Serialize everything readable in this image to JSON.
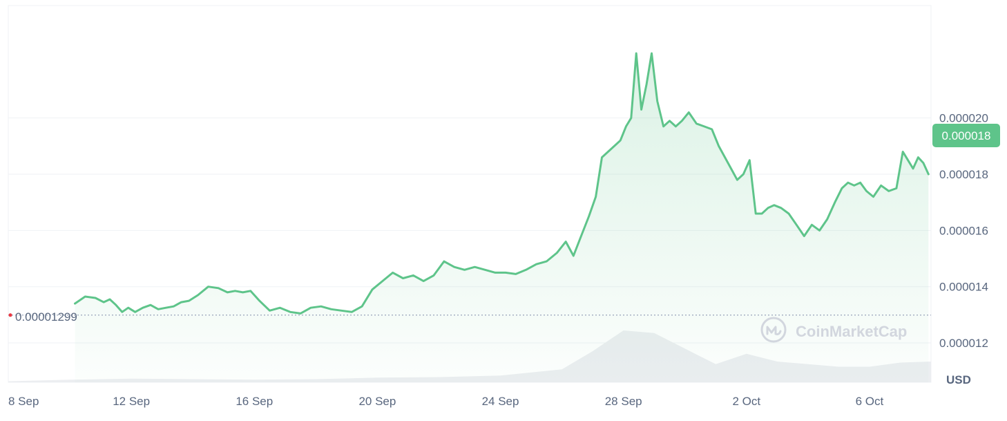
{
  "chart_data": {
    "type": "line",
    "currency_label": "USD",
    "watermark": "CoinMarketCap",
    "reference_line": {
      "value": 1.299e-05,
      "label": "0.00001299"
    },
    "current_price": {
      "value": 1.8e-05,
      "label": "0.000018"
    },
    "x_axis": {
      "start": "2023-09-08",
      "end": "2023-10-08",
      "ticks": [
        "8 Sep",
        "12 Sep",
        "16 Sep",
        "20 Sep",
        "24 Sep",
        "28 Sep",
        "2 Oct",
        "6 Oct"
      ]
    },
    "y_axis": {
      "range": [
        1.06e-05,
        2.4e-05
      ],
      "ticks": [
        "0.000012",
        "0.000014",
        "0.000016",
        "0.000018",
        "0.000020"
      ]
    },
    "grid": true,
    "colors": {
      "line": "#5ec48a",
      "fill": "#5ec48a",
      "current_badge": "#5ec48a",
      "reference_dot": "#ea3943",
      "grid": "#eff2f5",
      "axis_text": "#58667e",
      "volume": "#eceef1",
      "watermark": "#d2d6de"
    },
    "series": [
      {
        "values": [
          [
            "2023-09-10",
            1.34e-05
          ],
          [
            "2023-09-10",
            1.365e-05
          ],
          [
            "2023-09-10",
            1.36e-05
          ],
          [
            "2023-09-11",
            1.345e-05
          ],
          [
            "2023-09-11",
            1.355e-05
          ],
          [
            "2023-09-11",
            1.335e-05
          ],
          [
            "2023-09-11",
            1.31e-05
          ],
          [
            "2023-09-11",
            1.325e-05
          ],
          [
            "2023-09-12",
            1.31e-05
          ],
          [
            "2023-09-12",
            1.325e-05
          ],
          [
            "2023-09-12",
            1.335e-05
          ],
          [
            "2023-09-12",
            1.32e-05
          ],
          [
            "2023-09-13",
            1.325e-05
          ],
          [
            "2023-09-13",
            1.33e-05
          ],
          [
            "2023-09-13",
            1.345e-05
          ],
          [
            "2023-09-13",
            1.35e-05
          ],
          [
            "2023-09-14",
            1.37e-05
          ],
          [
            "2023-09-14",
            1.4e-05
          ],
          [
            "2023-09-14",
            1.395e-05
          ],
          [
            "2023-09-15",
            1.38e-05
          ],
          [
            "2023-09-15",
            1.385e-05
          ],
          [
            "2023-09-15",
            1.38e-05
          ],
          [
            "2023-09-15",
            1.385e-05
          ],
          [
            "2023-09-16",
            1.35e-05
          ],
          [
            "2023-09-16",
            1.315e-05
          ],
          [
            "2023-09-16",
            1.325e-05
          ],
          [
            "2023-09-17",
            1.31e-05
          ],
          [
            "2023-09-17",
            1.305e-05
          ],
          [
            "2023-09-17",
            1.325e-05
          ],
          [
            "2023-09-18",
            1.33e-05
          ],
          [
            "2023-09-18",
            1.32e-05
          ],
          [
            "2023-09-18",
            1.315e-05
          ],
          [
            "2023-09-19",
            1.31e-05
          ],
          [
            "2023-09-19",
            1.33e-05
          ],
          [
            "2023-09-19",
            1.39e-05
          ],
          [
            "2023-09-20",
            1.42e-05
          ],
          [
            "2023-09-20",
            1.45e-05
          ],
          [
            "2023-09-20",
            1.43e-05
          ],
          [
            "2023-09-21",
            1.44e-05
          ],
          [
            "2023-09-21",
            1.42e-05
          ],
          [
            "2023-09-21",
            1.44e-05
          ],
          [
            "2023-09-22",
            1.49e-05
          ],
          [
            "2023-09-22",
            1.47e-05
          ],
          [
            "2023-09-22",
            1.46e-05
          ],
          [
            "2023-09-23",
            1.47e-05
          ],
          [
            "2023-09-23",
            1.46e-05
          ],
          [
            "2023-09-23",
            1.45e-05
          ],
          [
            "2023-09-24",
            1.45e-05
          ],
          [
            "2023-09-24",
            1.445e-05
          ],
          [
            "2023-09-24",
            1.46e-05
          ],
          [
            "2023-09-25",
            1.48e-05
          ],
          [
            "2023-09-25",
            1.49e-05
          ],
          [
            "2023-09-25",
            1.52e-05
          ],
          [
            "2023-09-26",
            1.56e-05
          ],
          [
            "2023-09-26",
            1.51e-05
          ],
          [
            "2023-09-26",
            1.58e-05
          ],
          [
            "2023-09-26",
            1.65e-05
          ],
          [
            "2023-09-27",
            1.72e-05
          ],
          [
            "2023-09-27",
            1.86e-05
          ],
          [
            "2023-09-27",
            1.88e-05
          ],
          [
            "2023-09-27",
            1.9e-05
          ],
          [
            "2023-09-27",
            1.92e-05
          ],
          [
            "2023-09-28",
            1.97e-05
          ],
          [
            "2023-09-28",
            2e-05
          ],
          [
            "2023-09-28",
            2.23e-05
          ],
          [
            "2023-09-28",
            2.03e-05
          ],
          [
            "2023-09-28",
            2.12e-05
          ],
          [
            "2023-09-28",
            2.23e-05
          ],
          [
            "2023-09-29",
            2.06e-05
          ],
          [
            "2023-09-29",
            1.97e-05
          ],
          [
            "2023-09-29",
            1.99e-05
          ],
          [
            "2023-09-29",
            1.97e-05
          ],
          [
            "2023-09-29",
            1.99e-05
          ],
          [
            "2023-09-30",
            2.02e-05
          ],
          [
            "2023-09-30",
            1.98e-05
          ],
          [
            "2023-09-30",
            1.97e-05
          ],
          [
            "2023-09-30",
            1.96e-05
          ],
          [
            "2023-10-01",
            1.9e-05
          ],
          [
            "2023-10-01",
            1.86e-05
          ],
          [
            "2023-10-01",
            1.82e-05
          ],
          [
            "2023-10-01",
            1.78e-05
          ],
          [
            "2023-10-01",
            1.8e-05
          ],
          [
            "2023-10-02",
            1.85e-05
          ],
          [
            "2023-10-02",
            1.66e-05
          ],
          [
            "2023-10-02",
            1.66e-05
          ],
          [
            "2023-10-02",
            1.68e-05
          ],
          [
            "2023-10-02",
            1.69e-05
          ],
          [
            "2023-10-03",
            1.68e-05
          ],
          [
            "2023-10-03",
            1.66e-05
          ],
          [
            "2023-10-03",
            1.62e-05
          ],
          [
            "2023-10-03",
            1.58e-05
          ],
          [
            "2023-10-04",
            1.62e-05
          ],
          [
            "2023-10-04",
            1.6e-05
          ],
          [
            "2023-10-04",
            1.64e-05
          ],
          [
            "2023-10-04",
            1.7e-05
          ],
          [
            "2023-10-05",
            1.75e-05
          ],
          [
            "2023-10-05",
            1.77e-05
          ],
          [
            "2023-10-05",
            1.76e-05
          ],
          [
            "2023-10-05",
            1.77e-05
          ],
          [
            "2023-10-05",
            1.74e-05
          ],
          [
            "2023-10-06",
            1.72e-05
          ],
          [
            "2023-10-06",
            1.76e-05
          ],
          [
            "2023-10-06",
            1.74e-05
          ],
          [
            "2023-10-06",
            1.75e-05
          ],
          [
            "2023-10-07",
            1.88e-05
          ],
          [
            "2023-10-07",
            1.85e-05
          ],
          [
            "2023-10-07",
            1.82e-05
          ],
          [
            "2023-10-07",
            1.86e-05
          ],
          [
            "2023-10-07",
            1.84e-05
          ],
          [
            "2023-10-07",
            1.8e-05
          ]
        ]
      }
    ],
    "volume": [
      [
        "2023-09-08",
        0.02
      ],
      [
        "2023-09-10",
        0.05
      ],
      [
        "2023-09-12",
        0.07
      ],
      [
        "2023-09-14",
        0.06
      ],
      [
        "2023-09-16",
        0.05
      ],
      [
        "2023-09-18",
        0.06
      ],
      [
        "2023-09-20",
        0.09
      ],
      [
        "2023-09-22",
        0.1
      ],
      [
        "2023-09-24",
        0.13
      ],
      [
        "2023-09-26",
        0.25
      ],
      [
        "2023-09-27",
        0.6
      ],
      [
        "2023-09-28",
        1.0
      ],
      [
        "2023-09-29",
        0.95
      ],
      [
        "2023-09-30",
        0.65
      ],
      [
        "2023-10-01",
        0.35
      ],
      [
        "2023-10-02",
        0.55
      ],
      [
        "2023-10-03",
        0.4
      ],
      [
        "2023-10-04",
        0.35
      ],
      [
        "2023-10-05",
        0.3
      ],
      [
        "2023-10-06",
        0.3
      ],
      [
        "2023-10-07",
        0.38
      ],
      [
        "2023-10-08",
        0.4
      ]
    ]
  }
}
